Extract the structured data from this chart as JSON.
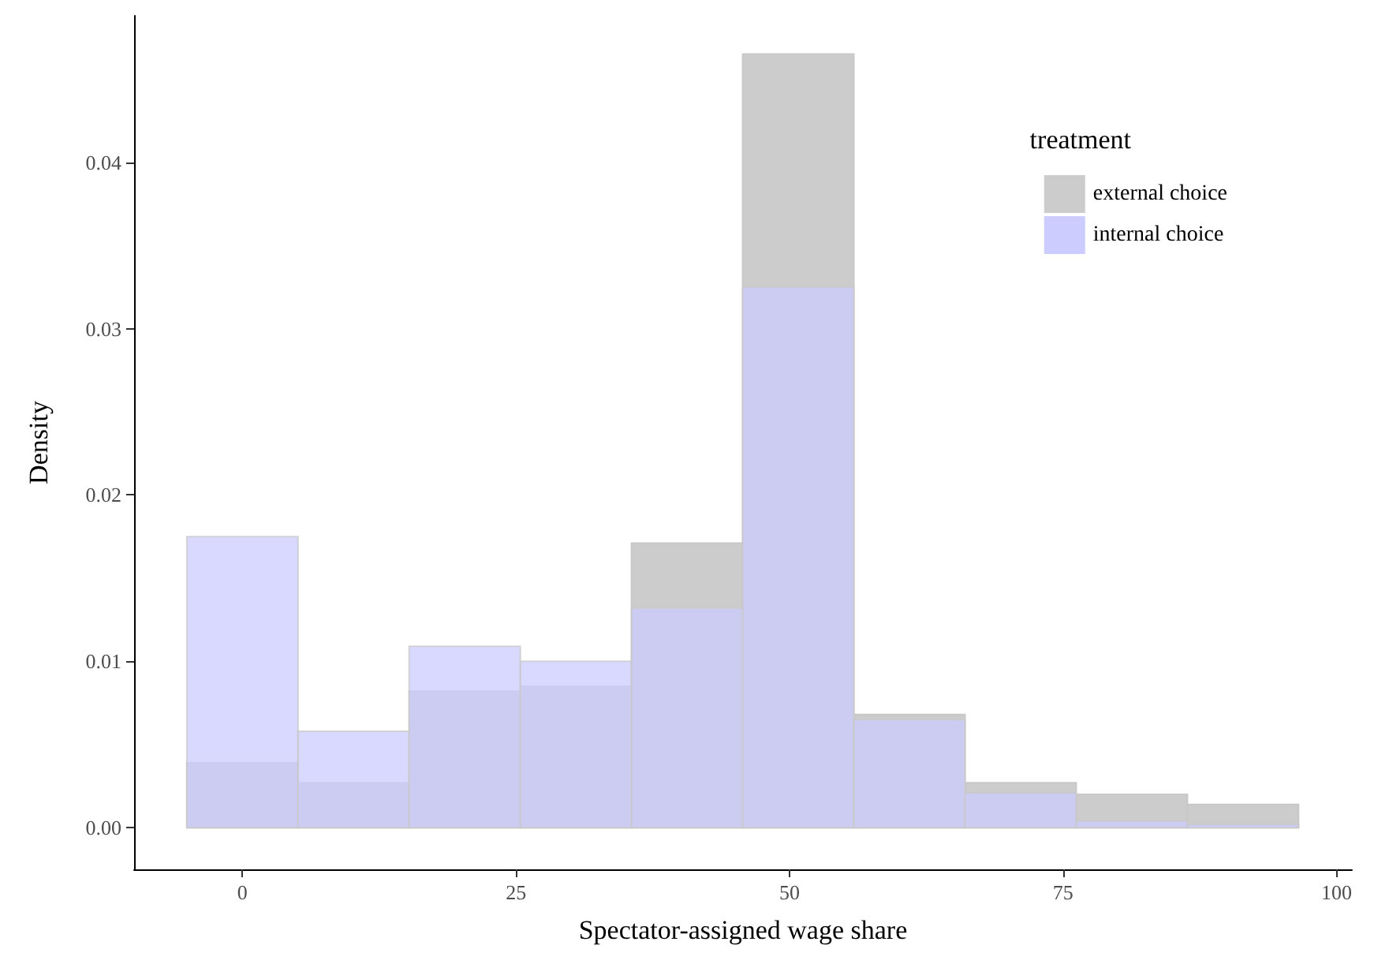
{
  "chart_data": {
    "type": "histogram",
    "xlabel": "Spectator-assigned wage share",
    "ylabel": "Density",
    "legend_title": "treatment",
    "legend": "top right",
    "grid": false,
    "bins": [
      -5.08,
      5.08,
      15.24,
      25.4,
      35.56,
      45.72,
      55.88,
      66.04,
      76.2,
      86.36,
      96.52
    ],
    "series": [
      {
        "name": "external choice",
        "color": "#cccccc",
        "values": [
          0.0039,
          0.0027,
          0.0082,
          0.0085,
          0.0171,
          0.0465,
          0.0068,
          0.0027,
          0.002,
          0.0014
        ]
      },
      {
        "name": "internal choice",
        "color": "#ccccff",
        "values": [
          0.0175,
          0.0058,
          0.0109,
          0.01,
          0.0132,
          0.0325,
          0.0065,
          0.0021,
          0.0004,
          0.0002
        ]
      }
    ],
    "xlim": [
      -9.9,
      101.4
    ],
    "xticks": [
      0,
      25,
      50,
      75,
      100
    ],
    "ylim": [
      -0.0025,
      0.0488
    ],
    "yticks": [
      {
        "value": 0,
        "label": "0.00"
      },
      {
        "value": 0.01,
        "label": "0.01"
      },
      {
        "value": 0.02,
        "label": "0.02"
      },
      {
        "value": 0.03,
        "label": "0.03"
      },
      {
        "value": 0.04,
        "label": "0.04"
      }
    ]
  }
}
